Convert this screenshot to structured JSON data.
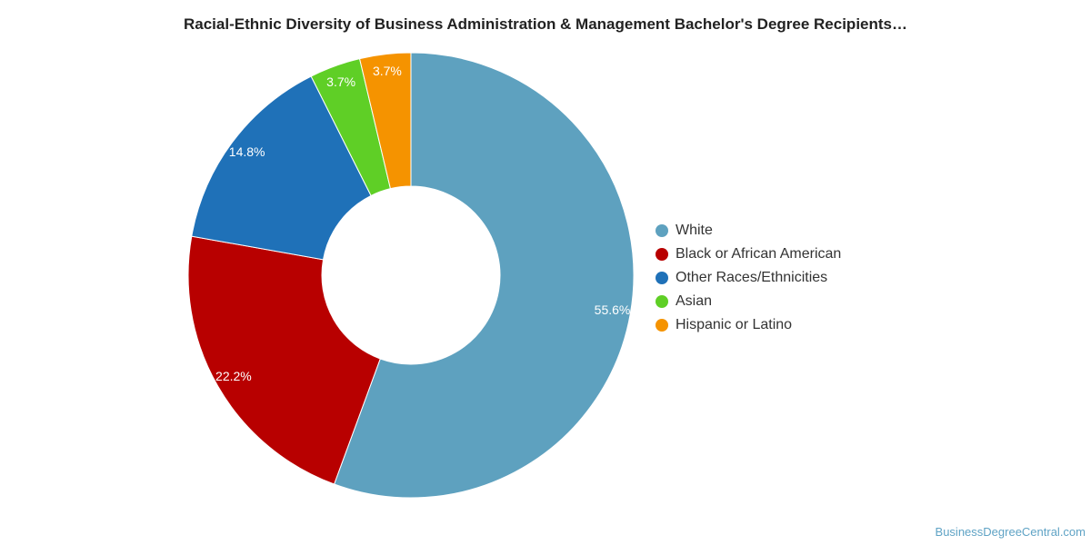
{
  "chart_data": {
    "type": "pie",
    "title": "Racial-Ethnic Diversity of Business Administration & Management Bachelor's Degree Recipients…",
    "categories": [
      "White",
      "Black or African American",
      "Other Races/Ethnicities",
      "Asian",
      "Hispanic or Latino"
    ],
    "values": [
      55.6,
      22.2,
      14.8,
      3.7,
      3.7
    ],
    "labels": [
      "55.6%",
      "22.2%",
      "14.8%",
      "3.7%",
      "3.7%"
    ],
    "colors": [
      "#5ea1bf",
      "#b80000",
      "#1f71b8",
      "#5fcf26",
      "#f59300"
    ],
    "donut": true,
    "legend_position": "right",
    "legend": [
      {
        "label": "White",
        "color": "#5ea1bf"
      },
      {
        "label": "Black or African American",
        "color": "#b80000"
      },
      {
        "label": "Other Races/Ethnicities",
        "color": "#1f71b8"
      },
      {
        "label": "Asian",
        "color": "#5fcf26"
      },
      {
        "label": "Hispanic or Latino",
        "color": "#f59300"
      }
    ]
  },
  "footer": {
    "source": "BusinessDegreeCentral.com"
  }
}
